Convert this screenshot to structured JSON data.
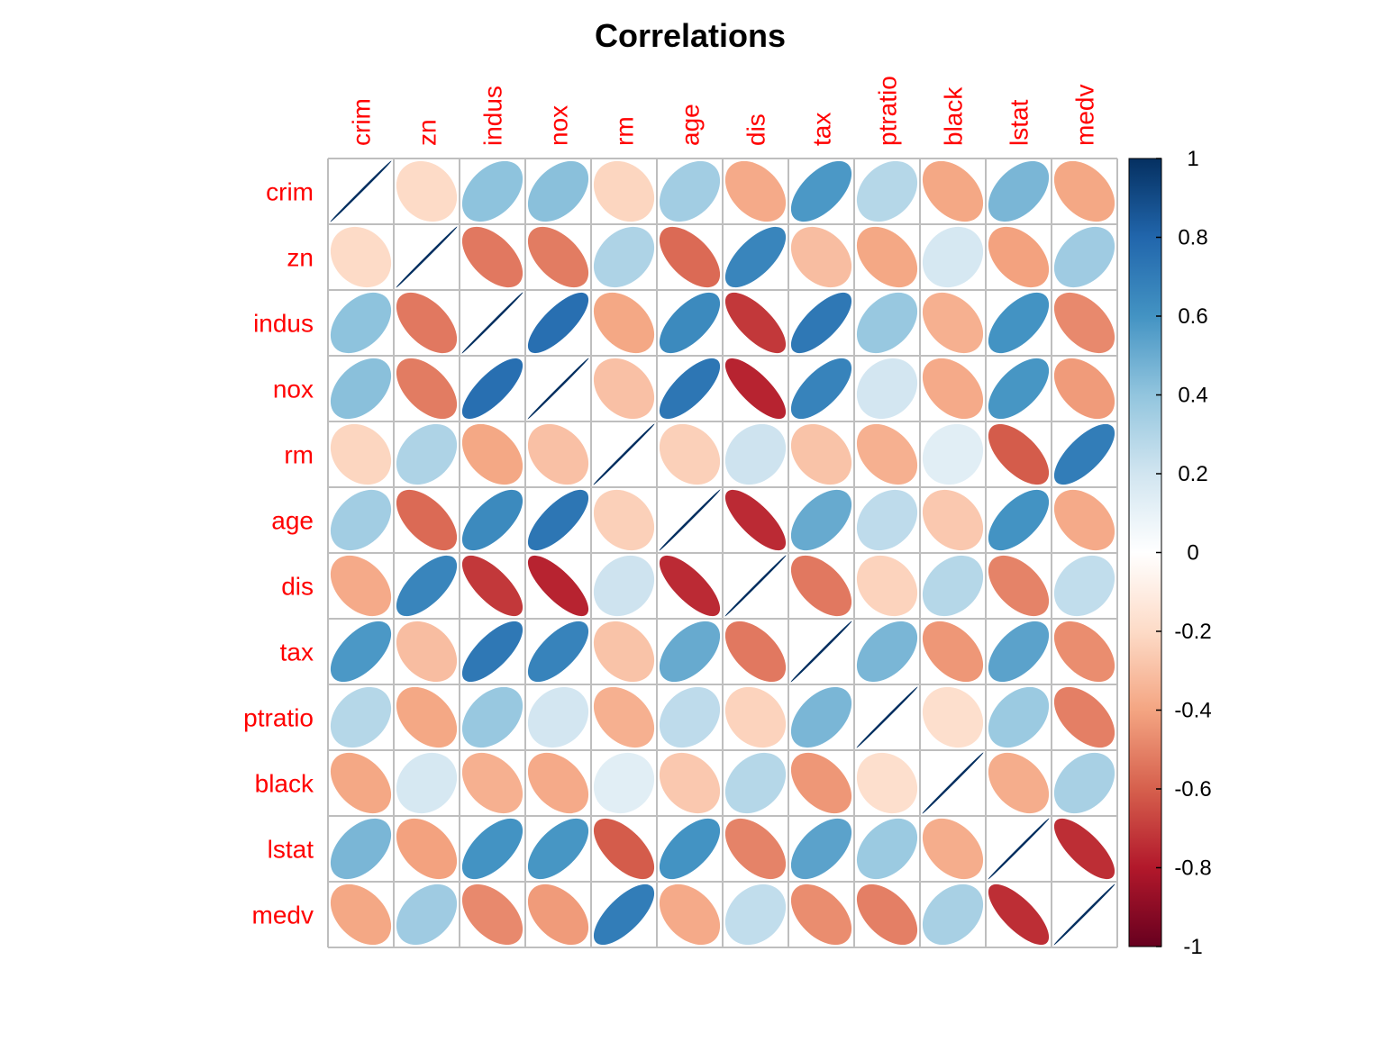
{
  "chart_data": {
    "type": "heatmap",
    "title": "Correlations",
    "variables": [
      "crim",
      "zn",
      "indus",
      "nox",
      "rm",
      "age",
      "dis",
      "tax",
      "ptratio",
      "black",
      "lstat",
      "medv"
    ],
    "matrix": [
      [
        1.0,
        -0.2,
        0.41,
        0.42,
        -0.22,
        0.35,
        -0.38,
        0.58,
        0.29,
        -0.39,
        0.46,
        -0.39
      ],
      [
        -0.2,
        1.0,
        -0.53,
        -0.52,
        0.31,
        -0.57,
        0.66,
        -0.31,
        -0.39,
        0.18,
        -0.41,
        0.36
      ],
      [
        0.41,
        -0.53,
        1.0,
        0.76,
        -0.39,
        0.64,
        -0.71,
        0.72,
        0.38,
        -0.36,
        0.6,
        -0.48
      ],
      [
        0.42,
        -0.52,
        0.76,
        1.0,
        -0.3,
        0.73,
        -0.77,
        0.67,
        0.19,
        -0.38,
        0.59,
        -0.43
      ],
      [
        -0.22,
        0.31,
        -0.39,
        -0.3,
        1.0,
        -0.24,
        0.21,
        -0.29,
        -0.36,
        0.13,
        -0.61,
        0.7
      ],
      [
        0.35,
        -0.57,
        0.64,
        0.73,
        -0.24,
        1.0,
        -0.75,
        0.51,
        0.26,
        -0.27,
        0.6,
        -0.38
      ],
      [
        -0.38,
        0.66,
        -0.71,
        -0.77,
        0.21,
        -0.75,
        1.0,
        -0.53,
        -0.23,
        0.29,
        -0.5,
        0.25
      ],
      [
        0.58,
        -0.31,
        0.72,
        0.67,
        -0.29,
        0.51,
        -0.53,
        1.0,
        0.46,
        -0.44,
        0.54,
        -0.47
      ],
      [
        0.29,
        -0.39,
        0.38,
        0.19,
        -0.36,
        0.26,
        -0.23,
        0.46,
        1.0,
        -0.18,
        0.37,
        -0.51
      ],
      [
        -0.39,
        0.18,
        -0.36,
        -0.38,
        0.13,
        -0.27,
        0.29,
        -0.44,
        -0.18,
        1.0,
        -0.37,
        0.33
      ],
      [
        0.46,
        -0.41,
        0.6,
        0.59,
        -0.61,
        0.6,
        -0.5,
        0.54,
        0.37,
        -0.37,
        1.0,
        -0.74
      ],
      [
        -0.39,
        0.36,
        -0.48,
        -0.43,
        0.7,
        -0.38,
        0.25,
        -0.47,
        -0.51,
        0.33,
        -0.74,
        1.0
      ]
    ],
    "colorbar": {
      "range": [
        -1,
        1
      ],
      "ticks": [
        1,
        0.8,
        0.6,
        0.4,
        0.2,
        0,
        -0.2,
        -0.4,
        -0.6,
        -0.8,
        -1
      ],
      "tick_labels": [
        "1",
        "0.8",
        "0.6",
        "0.4",
        "0.2",
        "0",
        "-0.2",
        "-0.4",
        "-0.6",
        "-0.8",
        "-1"
      ],
      "colors": [
        "#67001F",
        "#B2182B",
        "#D6604D",
        "#F4A582",
        "#FDDBC7",
        "#FFFFFF",
        "#D1E5F0",
        "#92C5DE",
        "#4393C3",
        "#2166AC",
        "#053061"
      ]
    },
    "label_color": "#ff0000",
    "grid_color": "#bebebe",
    "grid": true
  }
}
